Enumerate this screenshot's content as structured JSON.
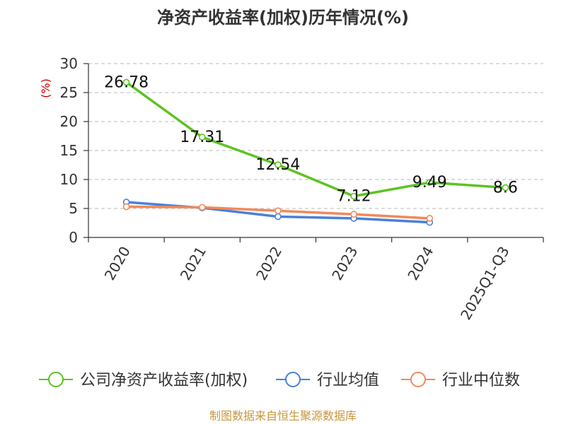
{
  "chart_data": {
    "type": "line",
    "title": "净资产收益率(加权)历年情况(%)",
    "ylabel": "(%)",
    "categories": [
      "2020",
      "2021",
      "2022",
      "2023",
      "2024",
      "2025Q1-Q3"
    ],
    "yticks": [
      "0",
      "5",
      "10",
      "15",
      "20",
      "25",
      "30"
    ],
    "ylim": [
      0,
      30
    ],
    "grid": true,
    "legend_position": "bottom",
    "series": [
      {
        "name": "公司净资产收益率(加权)",
        "color": "#5cc421",
        "values": [
          26.78,
          17.31,
          12.54,
          7.12,
          9.49,
          8.6
        ],
        "labels": [
          "26.78",
          "17.31",
          "12.54",
          "7.12",
          "9.49",
          "8.6"
        ]
      },
      {
        "name": "行业均值",
        "color": "#4a7fdb",
        "values": [
          6.1,
          5.1,
          3.6,
          3.3,
          2.6,
          null
        ]
      },
      {
        "name": "行业中位数",
        "color": "#f2895a",
        "values": [
          5.3,
          5.2,
          4.6,
          4.0,
          3.3,
          null
        ]
      }
    ]
  },
  "source": "制图数据来自恒生聚源数据库",
  "colors": {
    "ylabel": "#cc0000",
    "source": "#c8963c"
  }
}
